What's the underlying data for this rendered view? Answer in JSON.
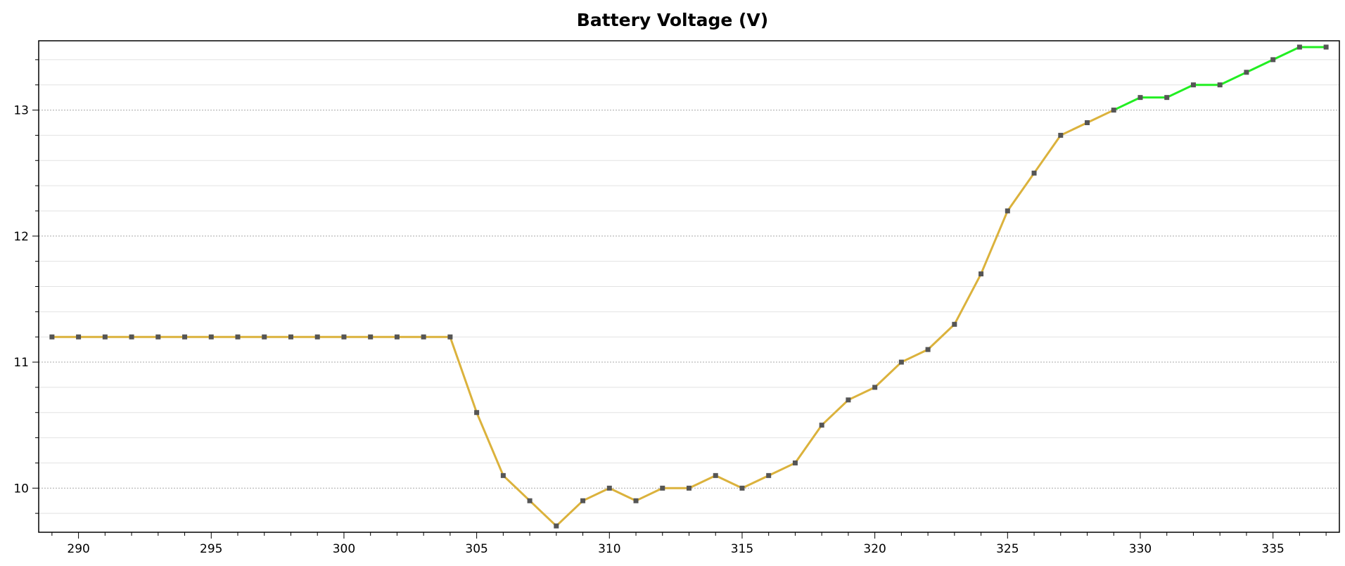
{
  "chart_data": {
    "type": "line",
    "title": "Battery Voltage (V)",
    "xlabel": "",
    "ylabel": "",
    "xlim": [
      288.5,
      337.5
    ],
    "ylim": [
      9.65,
      13.55
    ],
    "x_ticks": [
      290,
      295,
      300,
      305,
      310,
      315,
      320,
      325,
      330,
      335
    ],
    "y_ticks": [
      10,
      11,
      12,
      13
    ],
    "grid": true,
    "legend": "none",
    "colors": {
      "line_main": "#dbb23c",
      "line_high": "#22ee22",
      "marker": "#555555",
      "axis": "#000000",
      "grid_major": "#a8a8a8",
      "grid_minor": "#e2e2e2"
    },
    "series": [
      {
        "x": [
          289,
          290,
          291,
          292,
          293,
          294,
          295,
          296,
          297,
          298,
          299,
          300,
          301,
          302,
          303,
          304,
          305,
          306,
          307,
          308,
          309,
          310,
          311,
          312,
          313,
          314,
          315,
          316,
          317,
          318,
          319,
          320,
          321,
          322,
          323,
          324,
          325,
          326,
          327,
          328,
          329,
          330,
          331,
          332,
          333,
          334,
          335,
          336,
          337
        ],
        "values": [
          11.2,
          11.2,
          11.2,
          11.2,
          11.2,
          11.2,
          11.2,
          11.2,
          11.2,
          11.2,
          11.2,
          11.2,
          11.2,
          11.2,
          11.2,
          11.2,
          10.6,
          10.1,
          9.9,
          9.7,
          9.9,
          10.0,
          9.9,
          10.0,
          10.0,
          10.1,
          10.0,
          10.1,
          10.2,
          10.5,
          10.7,
          10.8,
          11.0,
          11.1,
          11.3,
          11.7,
          12.2,
          12.5,
          12.8,
          12.9,
          13.0,
          13.1,
          13.1,
          13.2,
          13.2,
          13.3,
          13.4,
          13.5,
          13.5
        ]
      }
    ],
    "color_threshold": 13.0
  }
}
